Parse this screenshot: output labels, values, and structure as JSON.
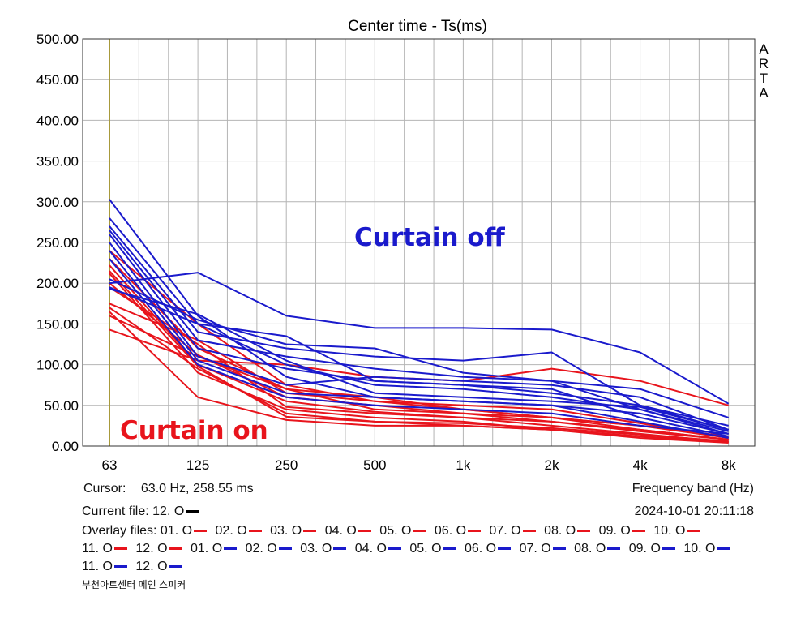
{
  "chart_data": {
    "type": "line",
    "title": "Center time - Ts(ms)",
    "xlabel": "Frequency band (Hz)",
    "ylabel": "",
    "categories": [
      "63",
      "125",
      "250",
      "500",
      "1k",
      "2k",
      "4k",
      "8k"
    ],
    "ylim": [
      0,
      500
    ],
    "yticks": [
      "0.00",
      "50.00",
      "100.00",
      "150.00",
      "200.00",
      "250.00",
      "300.00",
      "350.00",
      "400.00",
      "450.00",
      "500.00"
    ],
    "grid": true,
    "cursor_band": "63",
    "side_label": [
      "A",
      "R",
      "T",
      "A"
    ],
    "annotations": {
      "off": "Curtain off",
      "on": "Curtain on"
    },
    "series_on": [
      {
        "values": [
          222,
          100,
          55,
          42,
          35,
          25,
          15,
          5
        ]
      },
      {
        "values": [
          212,
          90,
          45,
          35,
          30,
          20,
          12,
          5
        ]
      },
      {
        "values": [
          240,
          150,
          75,
          55,
          50,
          45,
          28,
          10
        ]
      },
      {
        "values": [
          200,
          112,
          60,
          50,
          40,
          30,
          20,
          8
        ]
      },
      {
        "values": [
          230,
          120,
          70,
          60,
          45,
          35,
          25,
          10
        ]
      },
      {
        "values": [
          170,
          95,
          40,
          30,
          25,
          20,
          12,
          5
        ]
      },
      {
        "values": [
          165,
          60,
          32,
          25,
          25,
          20,
          10,
          4
        ]
      },
      {
        "values": [
          143,
          105,
          100,
          85,
          80,
          95,
          80,
          50
        ]
      },
      {
        "values": [
          175,
          130,
          65,
          55,
          45,
          35,
          25,
          12
        ]
      },
      {
        "values": [
          195,
          125,
          48,
          40,
          35,
          30,
          18,
          8
        ]
      },
      {
        "values": [
          215,
          98,
          36,
          30,
          28,
          22,
          14,
          6
        ]
      },
      {
        "values": [
          160,
          110,
          70,
          45,
          40,
          35,
          20,
          8
        ]
      }
    ],
    "series_off": [
      {
        "values": [
          303,
          160,
          85,
          60,
          55,
          50,
          40,
          15
        ]
      },
      {
        "values": [
          280,
          150,
          100,
          75,
          70,
          60,
          45,
          18
        ]
      },
      {
        "values": [
          270,
          140,
          120,
          110,
          105,
          115,
          50,
          20
        ]
      },
      {
        "values": [
          265,
          130,
          110,
          95,
          85,
          80,
          45,
          15
        ]
      },
      {
        "values": [
          260,
          120,
          95,
          80,
          75,
          70,
          35,
          12
        ]
      },
      {
        "values": [
          250,
          110,
          75,
          85,
          80,
          75,
          60,
          20
        ]
      },
      {
        "values": [
          240,
          105,
          65,
          60,
          55,
          50,
          30,
          10
        ]
      },
      {
        "values": [
          230,
          100,
          60,
          50,
          45,
          40,
          25,
          15
        ]
      },
      {
        "values": [
          205,
          155,
          125,
          120,
          90,
          80,
          70,
          35
        ]
      },
      {
        "values": [
          200,
          213,
          160,
          145,
          145,
          143,
          115,
          52
        ]
      },
      {
        "values": [
          195,
          150,
          135,
          80,
          75,
          65,
          50,
          25
        ]
      },
      {
        "values": [
          193,
          162,
          105,
          65,
          60,
          55,
          48,
          20
        ]
      }
    ]
  },
  "info": {
    "cursor_label": "Cursor:",
    "cursor_value": "63.0 Hz, 258.55 ms",
    "current_file_label": "Current file: 12. O",
    "timestamp": "2024-10-01   20:11:18",
    "overlay_label": "Overlay files: ",
    "overlay_on": [
      "01. O",
      "02. O",
      "03. O",
      "04. O",
      "05. O",
      "06. O",
      "07. O",
      "08. O",
      "09. O",
      "10. O",
      "11. O",
      "12. O"
    ],
    "overlay_off": [
      "01. O",
      "02. O",
      "03. O",
      "04. O",
      "05. O",
      "06. O",
      "07. O",
      "08. O",
      "09. O",
      "10. O",
      "11. O",
      "12. O"
    ],
    "footer_korean": "부천아트센터 메인 스피커"
  },
  "colors": {
    "on": "#e8141c",
    "off": "#1a1acc",
    "current": "#000000",
    "cursor": "#a89a3c",
    "grid": "#b4b4b4"
  }
}
